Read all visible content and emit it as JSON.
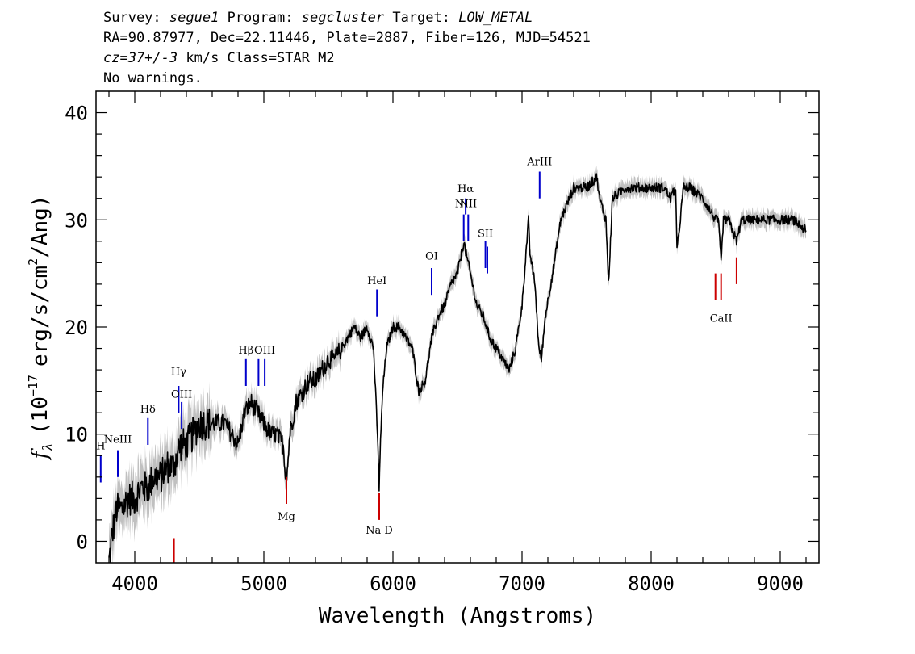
{
  "header": {
    "line1": {
      "survey_label": "Survey:",
      "survey": "segue1",
      "program_label": "Program:",
      "program": "segcluster",
      "target_label": "Target:",
      "target": "LOW_METAL"
    },
    "line2": "RA=90.87977, Dec=22.11446, Plate=2887, Fiber=126, MJD=54521",
    "line3": {
      "cz": "cz=37+/-3",
      "rest": "km/s Class=STAR M2"
    },
    "line4": "No warnings."
  },
  "colors": {
    "spectrum": "#000000",
    "error_band": "#c0c0c0",
    "emission": "#0000cc",
    "absorption": "#cc0000"
  },
  "chart_data": {
    "type": "line",
    "xlabel": "Wavelength (Angstroms)",
    "ylabel": "f_λ (10^-17 erg/s/cm^2/Ang)",
    "ylabel_parts": {
      "f": "f",
      "sub": "λ",
      "a": "(10",
      "exp1": "−17",
      "b": "erg/s/cm",
      "exp2": "2",
      "c": "/Ang)"
    },
    "xlim": [
      3700,
      9300
    ],
    "ylim": [
      -2,
      42
    ],
    "xticks": [
      4000,
      5000,
      6000,
      7000,
      8000,
      9000
    ],
    "yticks": [
      0,
      10,
      20,
      30,
      40
    ],
    "grid": false,
    "spectrum": {
      "x": [
        3800,
        3830,
        3860,
        3900,
        3950,
        4000,
        4050,
        4100,
        4150,
        4200,
        4250,
        4300,
        4350,
        4400,
        4450,
        4500,
        4550,
        4600,
        4650,
        4700,
        4750,
        4800,
        4850,
        4900,
        4950,
        5000,
        5050,
        5100,
        5150,
        5170,
        5185,
        5200,
        5250,
        5300,
        5350,
        5400,
        5450,
        5500,
        5550,
        5600,
        5650,
        5700,
        5750,
        5800,
        5850,
        5880,
        5893,
        5900,
        5920,
        5950,
        6000,
        6050,
        6100,
        6150,
        6200,
        6250,
        6300,
        6350,
        6400,
        6450,
        6500,
        6550,
        6563,
        6600,
        6650,
        6700,
        6750,
        6800,
        6850,
        6900,
        6950,
        7000,
        7050,
        7060,
        7100,
        7130,
        7150,
        7180,
        7250,
        7300,
        7400,
        7500,
        7580,
        7600,
        7650,
        7670,
        7700,
        7800,
        7900,
        8000,
        8100,
        8150,
        8190,
        8200,
        8250,
        8300,
        8400,
        8450,
        8498,
        8520,
        8542,
        8560,
        8600,
        8662,
        8700,
        8800,
        8900,
        9000,
        9100,
        9200
      ],
      "y": [
        -2,
        1,
        3,
        3,
        4,
        4,
        5,
        5,
        6,
        6,
        7,
        7,
        9,
        9,
        10,
        11,
        11,
        11,
        11,
        11,
        10,
        9,
        12,
        13,
        12,
        11,
        10,
        10,
        9,
        6,
        7,
        10,
        13,
        14,
        15,
        15,
        16,
        17,
        17,
        18,
        19,
        20,
        19,
        20,
        18,
        10,
        5,
        8,
        14,
        18,
        20,
        20,
        19,
        18,
        14,
        15,
        19,
        21,
        22,
        24,
        25,
        28,
        27,
        25,
        22,
        21,
        19,
        18,
        17,
        16,
        18,
        22,
        30,
        27,
        24,
        18,
        17,
        21,
        26,
        30,
        33,
        33,
        34,
        32,
        30,
        24,
        32,
        33,
        33,
        33,
        33,
        32,
        33,
        27,
        33,
        33,
        32,
        31,
        30,
        30,
        26,
        30,
        30,
        28,
        30,
        30,
        30,
        30,
        30,
        29
      ]
    },
    "lines": [
      {
        "name": "H",
        "wavelength": 3736,
        "kind": "emission",
        "ymin": 5.5,
        "ymax": 8.0,
        "label_y": 8.6
      },
      {
        "name": "NeIII",
        "wavelength": 3869,
        "kind": "emission",
        "ymin": 6.0,
        "ymax": 8.5,
        "label_y": 9.2
      },
      {
        "name": "Hδ",
        "wavelength": 4102,
        "kind": "emission",
        "ymin": 9.0,
        "ymax": 11.5,
        "label_y": 12.0
      },
      {
        "name": "Hγ",
        "wavelength": 4340,
        "kind": "emission",
        "ymin": 12.0,
        "ymax": 14.5,
        "label_y": 15.5
      },
      {
        "name": "OIII",
        "wavelength": 4363,
        "kind": "emission",
        "ymin": 10.5,
        "ymax": 13.0,
        "label_y": 13.4
      },
      {
        "name": "Hβ",
        "wavelength": 4861,
        "kind": "emission",
        "ymin": 14.5,
        "ymax": 17.0,
        "label_y": 17.5
      },
      {
        "name": "OIII",
        "wavelength": 4959,
        "kind": "emission",
        "ymin": 14.5,
        "ymax": 17.0,
        "label_y": null
      },
      {
        "name": "OIII",
        "wavelength": 5007,
        "kind": "emission",
        "ymin": 14.5,
        "ymax": 17.0,
        "label_y": 17.5
      },
      {
        "name": "HeI",
        "wavelength": 5876,
        "kind": "emission",
        "ymin": 21.0,
        "ymax": 23.5,
        "label_y": 24.0
      },
      {
        "name": "OI",
        "wavelength": 6300,
        "kind": "emission",
        "ymin": 23.0,
        "ymax": 25.5,
        "label_y": 26.3
      },
      {
        "name": "NII",
        "wavelength": 6548,
        "kind": "emission",
        "ymin": 28.0,
        "ymax": 30.5,
        "label_y": 31.2
      },
      {
        "name": "Hα",
        "wavelength": 6563,
        "kind": "emission",
        "ymin": 30.5,
        "ymax": 32.0,
        "label_y": 32.6
      },
      {
        "name": "NII",
        "wavelength": 6583,
        "kind": "emission",
        "ymin": 28.0,
        "ymax": 30.5,
        "label_y": 31.2
      },
      {
        "name": "SII",
        "wavelength": 6716,
        "kind": "emission",
        "ymin": 25.5,
        "ymax": 28.0,
        "label_y": 28.4
      },
      {
        "name": "SII",
        "wavelength": 6731,
        "kind": "emission",
        "ymin": 25.0,
        "ymax": 27.5,
        "label_y": null
      },
      {
        "name": "ArIII",
        "wavelength": 7136,
        "kind": "emission",
        "ymin": 32.0,
        "ymax": 34.5,
        "label_y": 35.1
      },
      {
        "name": "",
        "wavelength": 4304,
        "kind": "absorption",
        "ymin": -2.0,
        "ymax": 0.3,
        "label_y": null
      },
      {
        "name": "Mg",
        "wavelength": 5175,
        "kind": "absorption",
        "ymin": 3.5,
        "ymax": 6.0,
        "label_y": 2.0
      },
      {
        "name": "Na D",
        "wavelength": 5894,
        "kind": "absorption",
        "ymin": 2.0,
        "ymax": 4.5,
        "label_y": 0.7
      },
      {
        "name": "",
        "wavelength": 8498,
        "kind": "absorption",
        "ymin": 22.5,
        "ymax": 25.0,
        "label_y": null
      },
      {
        "name": "CaII",
        "wavelength": 8542,
        "kind": "absorption",
        "ymin": 22.5,
        "ymax": 25.0,
        "label_y": 20.5
      },
      {
        "name": "",
        "wavelength": 8662,
        "kind": "absorption",
        "ymin": 24.0,
        "ymax": 26.5,
        "label_y": null
      }
    ]
  }
}
